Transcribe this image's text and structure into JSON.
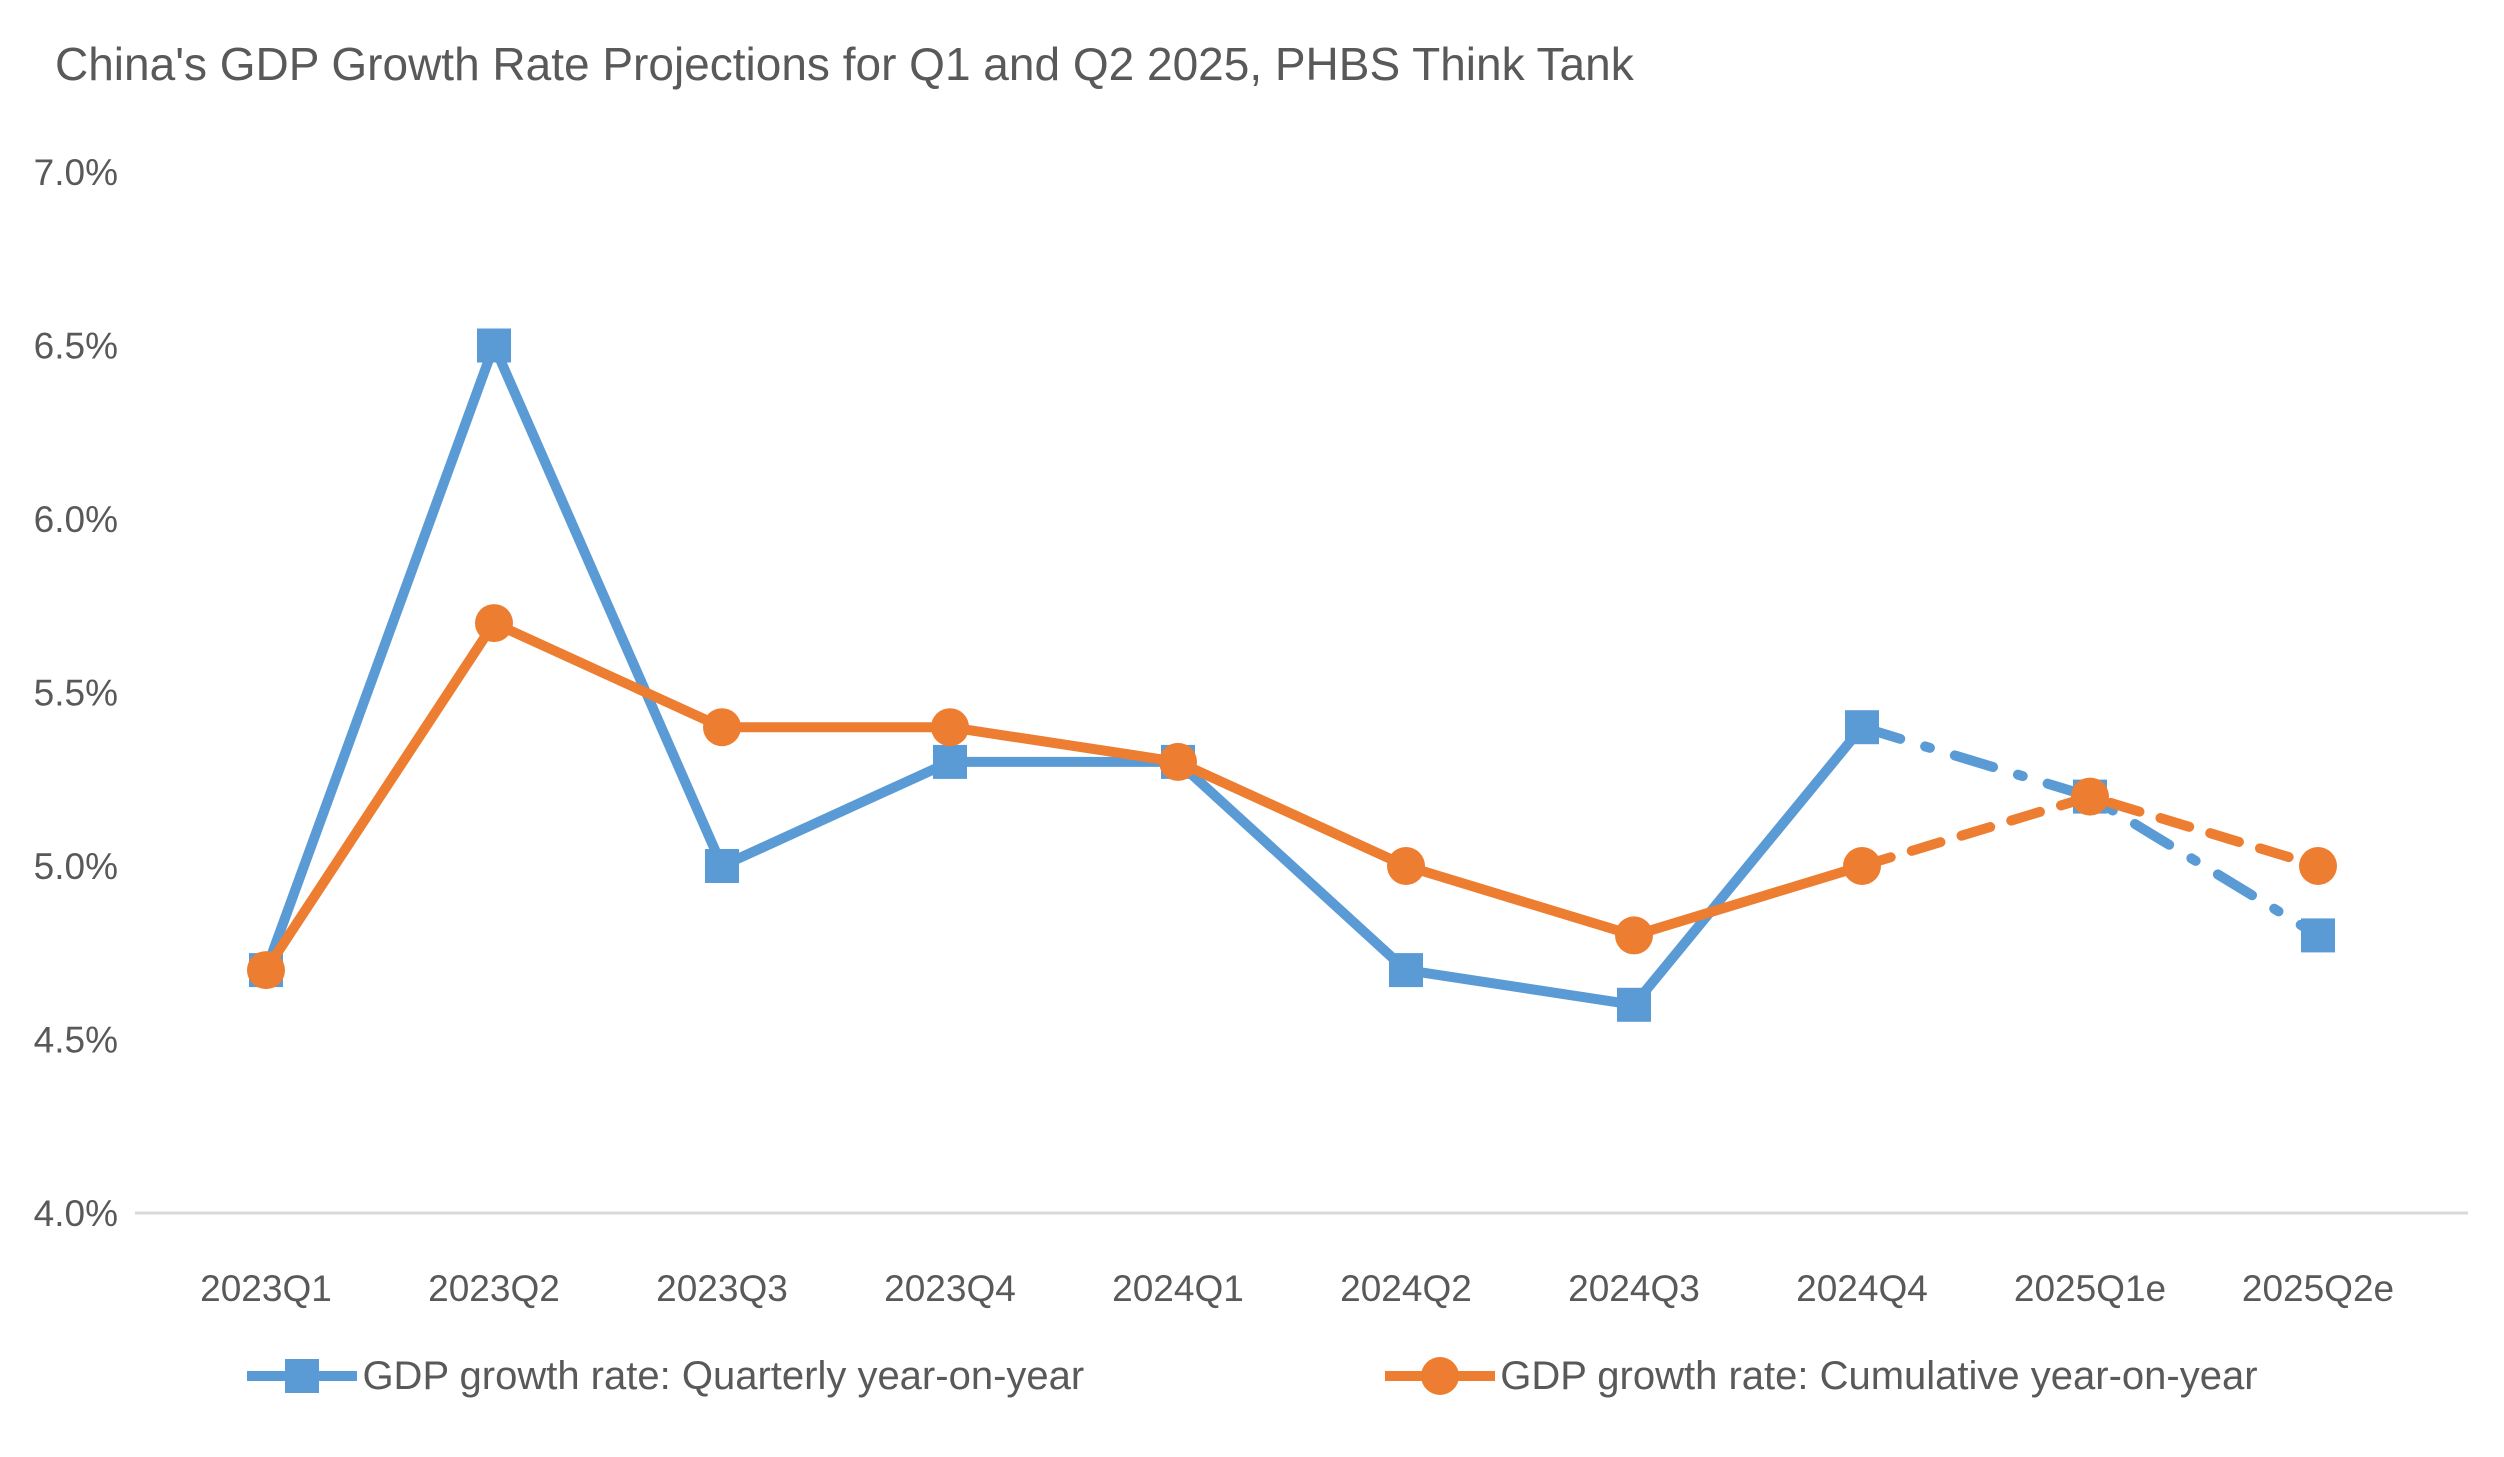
{
  "page": {
    "background_color": "#FFFFFF",
    "text_color": "#595959",
    "axis_line_color": "#D9D9D9"
  },
  "chart_data": {
    "type": "line",
    "title": "China's GDP Growth Rate Projections for Q1 and Q2 2025, PHBS Think Tank",
    "xlabel": "",
    "ylabel": "",
    "categories": [
      "2023Q1",
      "2023Q2",
      "2023Q3",
      "2023Q4",
      "2024Q1",
      "2024Q2",
      "2024Q3",
      "2024Q4",
      "2025Q1e",
      "2025Q2e"
    ],
    "series": [
      {
        "name": "GDP growth rate: Quarterly year-on-year",
        "color": "#5B9BD5",
        "marker": "square",
        "values": [
          4.7,
          6.5,
          5.0,
          5.3,
          5.3,
          4.7,
          4.6,
          5.4,
          5.2,
          4.8
        ],
        "projection_start_index": 7,
        "projection_style": "dash-dot"
      },
      {
        "name": "GDP growth rate: Cumulative year-on-year",
        "color": "#ED7D31",
        "marker": "circle",
        "values": [
          4.7,
          5.7,
          5.4,
          5.4,
          5.3,
          5.0,
          4.8,
          5.0,
          5.2,
          5.0
        ],
        "projection_start_index": 7,
        "projection_style": "dash"
      }
    ],
    "y_axis": {
      "min": 4.0,
      "max": 7.0,
      "step": 0.5,
      "tick_labels": [
        "4.0%",
        "4.5%",
        "5.0%",
        "5.5%",
        "6.0%",
        "6.5%",
        "7.0%"
      ]
    },
    "ylim": [
      4.0,
      7.0
    ],
    "grid": false,
    "legend_position": "bottom"
  }
}
